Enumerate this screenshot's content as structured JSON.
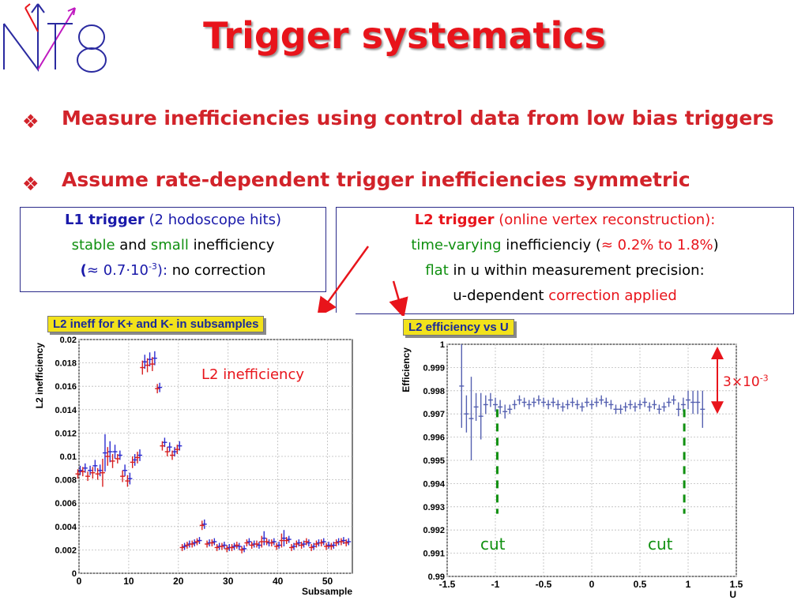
{
  "slide": {
    "title": "Trigger systematics",
    "bullets": [
      {
        "marker": "❖",
        "text": "Measure inefficiencies using control data from low bias triggers"
      },
      {
        "marker": "❖",
        "text": "Assume rate-dependent trigger inefficiencies symmetric"
      }
    ]
  },
  "box_l1": {
    "name": "L1 trigger",
    "desc": "(2 hodoscope hits)",
    "w_stable": "stable",
    "w_and": "and",
    "w_small": "small",
    "w_ineff": "inefficiency",
    "open": "(",
    "approx": "≈ 0.7·10",
    "exp": "-3",
    "close": "):",
    "tail": "no correction"
  },
  "box_l2": {
    "name": "L2 trigger",
    "desc": "(online vertex reconstruction):",
    "w_tv": "time-varying",
    "w_ineff": "inefficienciy (",
    "range": "≈ 0.2% to 1.8%",
    "close": ")",
    "w_flat": "flat",
    "w_within": "in u within measurement precision:",
    "w_udep": "u-dependent",
    "w_corr": "correction applied"
  },
  "annotations": {
    "l2_ineff": "L2 inefficiency",
    "range_base": "3×10",
    "range_exp": "-3",
    "cut_left": "cut",
    "cut_right": "cut"
  },
  "colors": {
    "title": "#e8141b",
    "bullet": "#d2232a",
    "marker_blue": "#2b2bd0",
    "marker_red": "#d82020",
    "cut_line": "#109010",
    "arrow": "#e8141b"
  },
  "chart_data": [
    {
      "type": "scatter",
      "title": "L2 ineff for K+ and K- in subsamples",
      "xlabel": "Subsample",
      "ylabel": "L2 inefficiency",
      "xlim": [
        0,
        55
      ],
      "ylim": [
        0,
        0.02
      ],
      "xticks": [
        "0",
        "10",
        "20",
        "30",
        "40",
        "50"
      ],
      "yticks": [
        "0",
        "0.002",
        "0.004",
        "0.006",
        "0.008",
        "0.01",
        "0.012",
        "0.014",
        "0.016",
        "0.018",
        "0.02"
      ],
      "grid": true,
      "series": [
        {
          "color": "#2b2bd0",
          "x": [
            0,
            1,
            2,
            3,
            4,
            5,
            6,
            7,
            8,
            9,
            10,
            11,
            12,
            13,
            14,
            15,
            16,
            17,
            18,
            19,
            20,
            21,
            22,
            23,
            24,
            25,
            26,
            27,
            28,
            29,
            30,
            31,
            32,
            33,
            34,
            35,
            36,
            37,
            38,
            39,
            40,
            41,
            42,
            43,
            44,
            45,
            46,
            47,
            48,
            49,
            50,
            51,
            52,
            53,
            54
          ],
          "y": [
            0.0088,
            0.009,
            0.0088,
            0.0092,
            0.0088,
            0.0103,
            0.0104,
            0.0104,
            0.0101,
            0.0088,
            0.0081,
            0.0097,
            0.0101,
            0.0181,
            0.0183,
            0.0184,
            0.0159,
            0.0112,
            0.0108,
            0.0104,
            0.0109,
            0.0023,
            0.0025,
            0.0026,
            0.0028,
            0.0042,
            0.0026,
            0.0027,
            0.0023,
            0.0024,
            0.0022,
            0.0023,
            0.0023,
            0.0021,
            0.0027,
            0.0025,
            0.0024,
            0.003,
            0.0026,
            0.0027,
            0.0024,
            0.003,
            0.0029,
            0.0023,
            0.0026,
            0.0025,
            0.0026,
            0.0023,
            0.0026,
            0.0027,
            0.0024,
            0.0024,
            0.0027,
            0.0028,
            0.0027
          ],
          "err": [
            0.0004,
            0.0004,
            0.0004,
            0.0005,
            0.0005,
            0.0016,
            0.0009,
            0.0006,
            0.0004,
            0.0005,
            0.0005,
            0.0005,
            0.0005,
            0.0006,
            0.0006,
            0.0006,
            0.0004,
            0.0004,
            0.0004,
            0.0004,
            0.0004,
            0.0003,
            0.0003,
            0.0003,
            0.0003,
            0.0004,
            0.0003,
            0.0003,
            0.0003,
            0.0003,
            0.0003,
            0.0003,
            0.0003,
            0.0003,
            0.0003,
            0.0003,
            0.0003,
            0.0006,
            0.0003,
            0.0003,
            0.0003,
            0.0007,
            0.0003,
            0.0003,
            0.0003,
            0.0003,
            0.0003,
            0.0003,
            0.0003,
            0.0003,
            0.0003,
            0.0003,
            0.0003,
            0.0003,
            0.0003
          ]
        },
        {
          "color": "#d82020",
          "x": [
            0,
            1,
            2,
            3,
            4,
            5,
            6,
            7,
            8,
            9,
            10,
            11,
            12,
            13,
            14,
            15,
            16,
            17,
            18,
            19,
            20,
            21,
            22,
            23,
            24,
            25,
            26,
            27,
            28,
            29,
            30,
            31,
            32,
            33,
            34,
            35,
            36,
            37,
            38,
            39,
            40,
            41,
            42,
            43,
            44,
            45,
            46,
            47,
            48,
            49,
            50,
            51,
            52,
            53,
            54
          ],
          "y": [
            0.0085,
            0.0087,
            0.0083,
            0.0086,
            0.0085,
            0.0086,
            0.01,
            0.0096,
            0.0098,
            0.0083,
            0.0079,
            0.0095,
            0.0099,
            0.0176,
            0.0178,
            0.0179,
            0.0158,
            0.0109,
            0.0104,
            0.0101,
            0.0106,
            0.0022,
            0.0024,
            0.0025,
            0.0027,
            0.0041,
            0.0025,
            0.0026,
            0.0022,
            0.0023,
            0.0021,
            0.0022,
            0.0024,
            0.002,
            0.0026,
            0.0024,
            0.0025,
            0.0027,
            0.0027,
            0.0026,
            0.0023,
            0.0028,
            0.0028,
            0.0022,
            0.0025,
            0.0024,
            0.0027,
            0.0022,
            0.0025,
            0.0026,
            0.0023,
            0.0023,
            0.0026,
            0.0027,
            0.0026
          ],
          "err": [
            0.0004,
            0.0004,
            0.0004,
            0.0005,
            0.0005,
            0.0012,
            0.0008,
            0.0006,
            0.0004,
            0.0005,
            0.0005,
            0.0005,
            0.0005,
            0.0006,
            0.0006,
            0.0006,
            0.0004,
            0.0004,
            0.0004,
            0.0004,
            0.0004,
            0.0003,
            0.0003,
            0.0003,
            0.0003,
            0.0004,
            0.0003,
            0.0003,
            0.0003,
            0.0003,
            0.0003,
            0.0003,
            0.0003,
            0.0003,
            0.0003,
            0.0003,
            0.0003,
            0.0005,
            0.0003,
            0.0003,
            0.0003,
            0.0006,
            0.0003,
            0.0003,
            0.0003,
            0.0003,
            0.0003,
            0.0003,
            0.0003,
            0.0003,
            0.0003,
            0.0003,
            0.0003,
            0.0003,
            0.0003
          ]
        }
      ]
    },
    {
      "type": "scatter",
      "title": "L2 efficiency vs U",
      "xlabel": "U",
      "ylabel": "Efficiency",
      "xlim": [
        -1.5,
        1.5
      ],
      "ylim": [
        0.99,
        1.0
      ],
      "xticks": [
        "-1.5",
        "-1",
        "-0.5",
        "0",
        "0.5",
        "1",
        "1.5"
      ],
      "yticks": [
        "0.99",
        "0.991",
        "0.992",
        "0.993",
        "0.994",
        "0.995",
        "0.996",
        "0.997",
        "0.998",
        "0.999",
        "1"
      ],
      "grid": true,
      "cuts": [
        -0.98,
        0.96
      ],
      "range_band": [
        0.997,
        0.9999
      ],
      "series": [
        {
          "color": "#5560b0",
          "x": [
            -1.35,
            -1.3,
            -1.25,
            -1.2,
            -1.15,
            -1.1,
            -1.05,
            -1.0,
            -0.95,
            -0.9,
            -0.85,
            -0.8,
            -0.75,
            -0.7,
            -0.65,
            -0.6,
            -0.55,
            -0.5,
            -0.45,
            -0.4,
            -0.35,
            -0.3,
            -0.25,
            -0.2,
            -0.15,
            -0.1,
            -0.05,
            0.0,
            0.05,
            0.1,
            0.15,
            0.2,
            0.25,
            0.3,
            0.35,
            0.4,
            0.45,
            0.5,
            0.55,
            0.6,
            0.65,
            0.7,
            0.75,
            0.8,
            0.85,
            0.9,
            0.95,
            1.0,
            1.05,
            1.1,
            1.15
          ],
          "y": [
            0.9982,
            0.997,
            0.9968,
            0.9973,
            0.9969,
            0.9974,
            0.9976,
            0.9974,
            0.9973,
            0.9971,
            0.9972,
            0.9974,
            0.9976,
            0.9975,
            0.9974,
            0.9975,
            0.9976,
            0.9975,
            0.9974,
            0.9975,
            0.9974,
            0.9973,
            0.9974,
            0.9975,
            0.9974,
            0.9973,
            0.9975,
            0.9974,
            0.9975,
            0.9976,
            0.9975,
            0.9974,
            0.9972,
            0.9972,
            0.9973,
            0.9974,
            0.9973,
            0.9974,
            0.9975,
            0.9973,
            0.9974,
            0.9972,
            0.9973,
            0.9975,
            0.9976,
            0.9972,
            0.9974,
            0.9976,
            0.9975,
            0.9975,
            0.9972
          ],
          "err": [
            0.0018,
            0.0008,
            0.0018,
            0.0006,
            0.001,
            0.0004,
            0.0003,
            0.0003,
            0.0003,
            0.0003,
            0.0002,
            0.0002,
            0.0002,
            0.0002,
            0.0002,
            0.0002,
            0.0002,
            0.0002,
            0.0002,
            0.0002,
            0.0002,
            0.0002,
            0.0002,
            0.0002,
            0.0002,
            0.0002,
            0.0002,
            0.0002,
            0.0002,
            0.0002,
            0.0002,
            0.0002,
            0.0002,
            0.0002,
            0.0002,
            0.0002,
            0.0002,
            0.0002,
            0.0002,
            0.0002,
            0.0002,
            0.0002,
            0.0002,
            0.0002,
            0.0002,
            0.0003,
            0.0003,
            0.0004,
            0.0005,
            0.0005,
            0.0008
          ]
        }
      ]
    }
  ]
}
